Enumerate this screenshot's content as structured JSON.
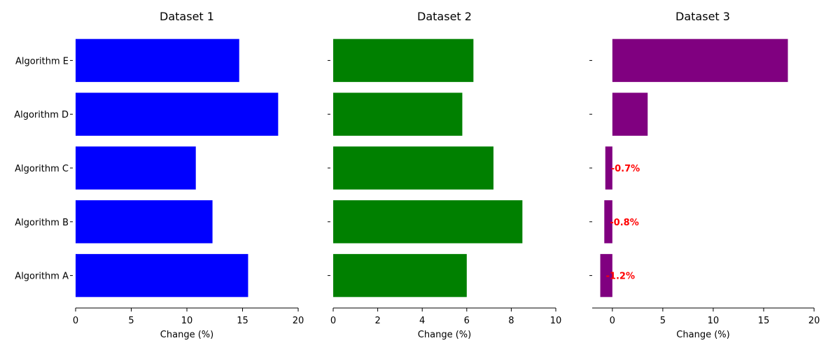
{
  "chart_data": [
    {
      "type": "bar",
      "orientation": "horizontal",
      "title": "Dataset 1",
      "xlabel": "Change (%)",
      "ylabel": "",
      "xlim": [
        0,
        20
      ],
      "xticks": [
        "0",
        "5",
        "10",
        "15",
        "20"
      ],
      "categories": [
        "Algorithm A",
        "Algorithm B",
        "Algorithm C",
        "Algorithm D",
        "Algorithm E"
      ],
      "values": [
        15.5,
        12.3,
        10.8,
        18.2,
        14.7
      ],
      "color": "#0000ff",
      "annotations": []
    },
    {
      "type": "bar",
      "orientation": "horizontal",
      "title": "Dataset 2",
      "xlabel": "Change (%)",
      "ylabel": "",
      "xlim": [
        0,
        10
      ],
      "xticks": [
        "0",
        "2",
        "4",
        "6",
        "8",
        "10"
      ],
      "categories": [
        "Algorithm A",
        "Algorithm B",
        "Algorithm C",
        "Algorithm D",
        "Algorithm E"
      ],
      "values": [
        6.0,
        8.5,
        7.2,
        5.8,
        6.3
      ],
      "color": "#008000",
      "annotations": []
    },
    {
      "type": "bar",
      "orientation": "horizontal",
      "title": "Dataset 3",
      "xlabel": "Change (%)",
      "ylabel": "",
      "xlim": [
        -2,
        20
      ],
      "xticks": [
        "0",
        "5",
        "10",
        "15",
        "20"
      ],
      "categories": [
        "Algorithm A",
        "Algorithm B",
        "Algorithm C",
        "Algorithm D",
        "Algorithm E"
      ],
      "values": [
        -1.2,
        -0.8,
        -0.7,
        3.5,
        17.4
      ],
      "color": "#800080",
      "annotations": [
        {
          "category": "Algorithm A",
          "text": "-1.2%",
          "color": "#ff0000"
        },
        {
          "category": "Algorithm B",
          "text": "-0.8%",
          "color": "#ff0000"
        },
        {
          "category": "Algorithm C",
          "text": "-0.7%",
          "color": "#ff0000"
        }
      ]
    }
  ]
}
